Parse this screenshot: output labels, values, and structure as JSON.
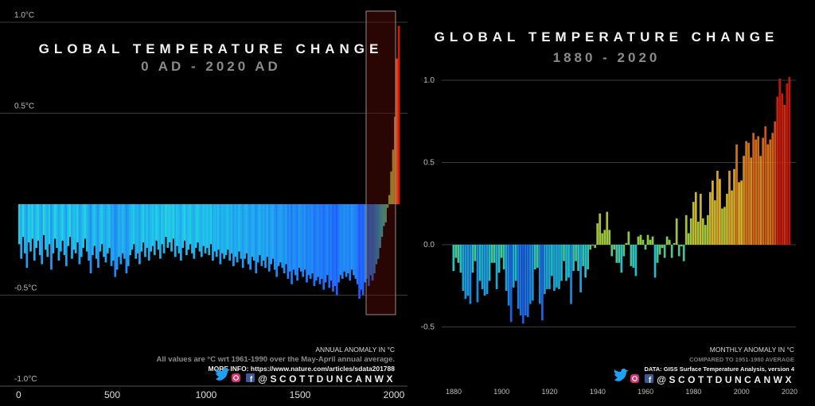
{
  "chart_data": [
    {
      "type": "bar",
      "title": "GLOBAL TEMPERATURE CHANGE",
      "subtitle": "0 AD - 2020 AD",
      "xlabel": "",
      "ylabel": "",
      "x_start": 0,
      "x_step": 10,
      "xlim": [
        0,
        2020
      ],
      "ylim": [
        -1.0,
        1.0
      ],
      "x_ticks": [
        "0",
        "500",
        "1000",
        "1500",
        "2000"
      ],
      "x_tick_values": [
        0,
        500,
        1000,
        1500,
        2000
      ],
      "y_ticks": [
        "1.0°C",
        "0.5°C",
        "-0.5°C",
        "-1.0°C"
      ],
      "y_tick_values": [
        1.0,
        0.5,
        -0.5,
        -1.0
      ],
      "highlight_range": [
        1900,
        2020
      ],
      "values": [
        -0.22,
        -0.3,
        -0.18,
        -0.27,
        -0.35,
        -0.21,
        -0.26,
        -0.19,
        -0.31,
        -0.24,
        -0.2,
        -0.28,
        -0.33,
        -0.17,
        -0.25,
        -0.29,
        -0.22,
        -0.36,
        -0.27,
        -0.19,
        -0.24,
        -0.31,
        -0.26,
        -0.2,
        -0.28,
        -0.34,
        -0.23,
        -0.18,
        -0.3,
        -0.25,
        -0.27,
        -0.21,
        -0.33,
        -0.29,
        -0.24,
        -0.19,
        -0.26,
        -0.31,
        -0.38,
        -0.28,
        -0.23,
        -0.3,
        -0.35,
        -0.26,
        -0.22,
        -0.29,
        -0.32,
        -0.27,
        -0.24,
        -0.34,
        -0.31,
        -0.4,
        -0.36,
        -0.29,
        -0.33,
        -0.27,
        -0.3,
        -0.38,
        -0.34,
        -0.28,
        -0.25,
        -0.22,
        -0.3,
        -0.27,
        -0.33,
        -0.26,
        -0.21,
        -0.29,
        -0.24,
        -0.31,
        -0.26,
        -0.23,
        -0.28,
        -0.2,
        -0.25,
        -0.3,
        -0.22,
        -0.27,
        -0.18,
        -0.24,
        -0.21,
        -0.26,
        -0.19,
        -0.29,
        -0.23,
        -0.27,
        -0.31,
        -0.24,
        -0.2,
        -0.28,
        -0.25,
        -0.22,
        -0.27,
        -0.3,
        -0.24,
        -0.21,
        -0.26,
        -0.29,
        -0.23,
        -0.27,
        -0.24,
        -0.28,
        -0.22,
        -0.31,
        -0.26,
        -0.29,
        -0.25,
        -0.33,
        -0.27,
        -0.3,
        -0.28,
        -0.25,
        -0.31,
        -0.27,
        -0.34,
        -0.29,
        -0.32,
        -0.26,
        -0.3,
        -0.35,
        -0.3,
        -0.27,
        -0.33,
        -0.36,
        -0.29,
        -0.31,
        -0.38,
        -0.32,
        -0.28,
        -0.34,
        -0.31,
        -0.35,
        -0.29,
        -0.37,
        -0.33,
        -0.3,
        -0.36,
        -0.4,
        -0.34,
        -0.32,
        -0.35,
        -0.38,
        -0.33,
        -0.41,
        -0.37,
        -0.44,
        -0.36,
        -0.39,
        -0.42,
        -0.35,
        -0.37,
        -0.4,
        -0.36,
        -0.43,
        -0.39,
        -0.41,
        -0.38,
        -0.45,
        -0.42,
        -0.4,
        -0.44,
        -0.41,
        -0.47,
        -0.43,
        -0.39,
        -0.46,
        -0.42,
        -0.48,
        -0.45,
        -0.5,
        -0.43,
        -0.39,
        -0.41,
        -0.37,
        -0.4,
        -0.38,
        -0.42,
        -0.36,
        -0.39,
        -0.41,
        -0.44,
        -0.52,
        -0.47,
        -0.5,
        -0.43,
        -0.41,
        -0.45,
        -0.39,
        -0.42,
        -0.38,
        -0.33,
        -0.3,
        -0.24,
        -0.18,
        -0.12,
        -0.1,
        -0.02,
        0.05,
        0.18,
        0.3,
        0.48,
        0.8,
        0.98
      ],
      "notes": {
        "anomaly_label": "ANNUAL ANOMALY IN °C",
        "baseline": "All values are °C wrt 1961-1990 over the May-April annual average.",
        "more_info": "MORE INFO: https://www.nature.com/articles/sdata201788",
        "handle": "@SCOTTDUNCANWX"
      }
    },
    {
      "type": "bar",
      "title": "GLOBAL TEMPERATURE CHANGE",
      "subtitle": "1880 - 2020",
      "xlabel": "",
      "ylabel": "",
      "x_start": 1880,
      "x_step": 1,
      "xlim": [
        1880,
        2020
      ],
      "ylim": [
        -0.7,
        1.3
      ],
      "x_ticks": [
        "1880",
        "1900",
        "1920",
        "1940",
        "1960",
        "1980",
        "2000",
        "2020"
      ],
      "x_tick_values": [
        1880,
        1900,
        1920,
        1940,
        1960,
        1980,
        2000,
        2020
      ],
      "y_ticks": [
        "1.0",
        "0.5",
        "0.0",
        "-0.5"
      ],
      "y_tick_values": [
        1.0,
        0.5,
        0.0,
        -0.5
      ],
      "values": [
        -0.16,
        -0.08,
        -0.11,
        -0.17,
        -0.28,
        -0.33,
        -0.31,
        -0.36,
        -0.17,
        -0.1,
        -0.35,
        -0.22,
        -0.27,
        -0.31,
        -0.3,
        -0.22,
        -0.11,
        -0.11,
        -0.27,
        -0.17,
        -0.08,
        -0.15,
        -0.28,
        -0.37,
        -0.47,
        -0.26,
        -0.22,
        -0.39,
        -0.43,
        -0.48,
        -0.43,
        -0.44,
        -0.36,
        -0.34,
        -0.15,
        -0.14,
        -0.36,
        -0.46,
        -0.3,
        -0.27,
        -0.27,
        -0.19,
        -0.28,
        -0.26,
        -0.27,
        -0.22,
        -0.1,
        -0.22,
        -0.2,
        -0.36,
        -0.16,
        -0.1,
        -0.16,
        -0.29,
        -0.13,
        -0.2,
        -0.15,
        -0.03,
        0.0,
        -0.02,
        0.13,
        0.19,
        0.07,
        0.09,
        0.2,
        0.09,
        -0.07,
        -0.03,
        -0.11,
        -0.11,
        -0.17,
        -0.07,
        0.01,
        0.08,
        -0.13,
        -0.14,
        -0.19,
        0.05,
        0.06,
        0.03,
        -0.03,
        0.06,
        0.03,
        0.05,
        -0.2,
        -0.11,
        -0.06,
        -0.02,
        -0.08,
        0.05,
        0.03,
        -0.08,
        0.01,
        0.16,
        -0.07,
        -0.01,
        -0.1,
        0.18,
        0.07,
        0.16,
        0.26,
        0.32,
        0.14,
        0.31,
        0.16,
        0.12,
        0.18,
        0.32,
        0.39,
        0.27,
        0.45,
        0.4,
        0.22,
        0.23,
        0.31,
        0.45,
        0.33,
        0.46,
        0.61,
        0.38,
        0.39,
        0.54,
        0.63,
        0.62,
        0.53,
        0.68,
        0.64,
        0.66,
        0.54,
        0.65,
        0.72,
        0.61,
        0.64,
        0.68,
        0.75,
        0.9,
        1.01,
        0.92,
        0.85,
        0.98,
        1.02
      ],
      "notes": {
        "anomaly_label": "MONTHLY ANOMALY IN °C",
        "baseline": "COMPARED TO 1951-1980 AVERAGE",
        "data_source": "DATA: GISS Surface Temperature Analysis, version 4",
        "handle": "@SCOTTDUNCANWX"
      }
    }
  ],
  "icons": [
    "twitter-icon",
    "instagram-icon",
    "facebook-icon"
  ],
  "colors": {
    "background": "#000000",
    "cold": "#1f4dff",
    "cool": "#22d2e6",
    "neutral": "#9be04a",
    "warm": "#f2c230",
    "hot": "#d41a0a",
    "highlight_fill": "#3a0806",
    "twitter": "#1da1f2",
    "facebook": "#3b5998"
  }
}
